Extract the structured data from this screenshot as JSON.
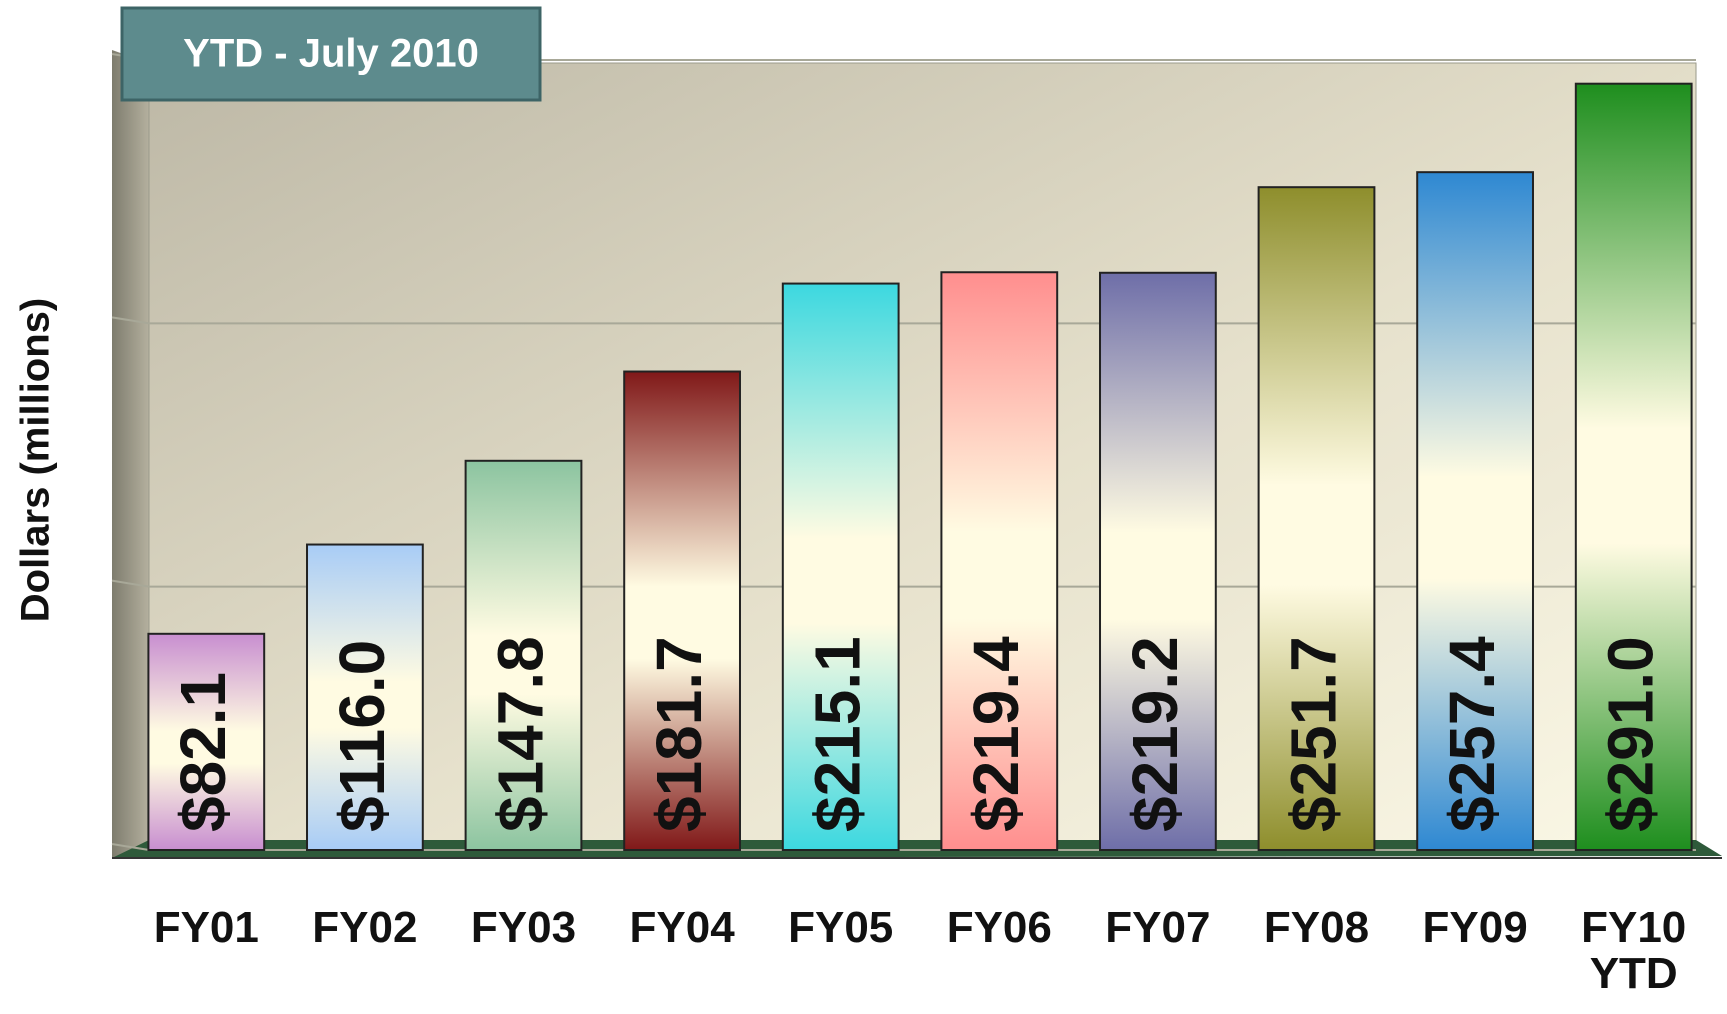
{
  "chart_data": {
    "type": "bar",
    "title": "YTD - July 2010",
    "y_label": "Dollars (millions)",
    "categories": [
      "FY01",
      "FY02",
      "FY03",
      "FY04",
      "FY05",
      "FY06",
      "FY07",
      "FY08",
      "FY09",
      "FY10 YTD"
    ],
    "values": [
      82.1,
      116.0,
      147.8,
      181.7,
      215.1,
      219.4,
      219.2,
      251.7,
      257.4,
      291.0
    ],
    "value_labels": [
      "$82.1",
      "$116.0",
      "$147.8",
      "$181.7",
      "$215.1",
      "$219.4",
      "$219.2",
      "$251.7",
      "$257.4",
      "$291.0"
    ],
    "colors": [
      "#c88ed0",
      "#a8ccf6",
      "#8cc4a0",
      "#801818",
      "#3cd8e0",
      "#ff8e8e",
      "#6e6ea8",
      "#8e8e2c",
      "#2e88d2",
      "#1e8e1e"
    ],
    "ylim": [
      0,
      300
    ],
    "yticks": [
      0,
      100,
      200,
      300
    ],
    "grid": true
  }
}
